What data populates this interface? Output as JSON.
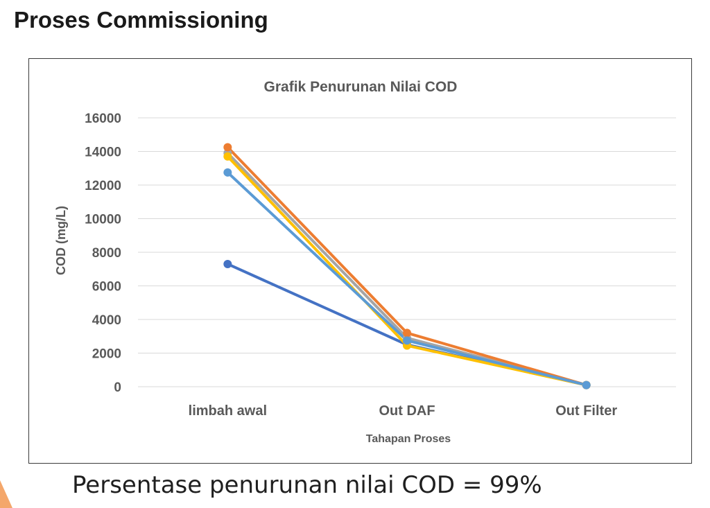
{
  "slide": {
    "title": "Proses Commissioning",
    "caption": "Persentase penurunan nilai COD = 99%"
  },
  "colors": {
    "grid": "#d9d9d9",
    "axis_text": "#595959",
    "accent": "#f4a76b"
  },
  "chart_data": {
    "type": "line",
    "title": "Grafik Penurunan Nilai COD",
    "xlabel": "Tahapan Proses",
    "ylabel": "COD (mg/L)",
    "categories": [
      "limbah awal",
      "Out DAF",
      "Out Filter"
    ],
    "ylim": [
      0,
      16000
    ],
    "yticks": [
      0,
      2000,
      4000,
      6000,
      8000,
      10000,
      12000,
      14000,
      16000
    ],
    "grid": true,
    "legend": "none",
    "series": [
      {
        "color": "#4472c4",
        "values": [
          7300,
          2500,
          100
        ]
      },
      {
        "color": "#a5a5a5",
        "values": [
          13900,
          2900,
          100
        ]
      },
      {
        "color": "#ed7d31",
        "values": [
          14250,
          3200,
          100
        ]
      },
      {
        "color": "#ffc000",
        "values": [
          13700,
          2450,
          100
        ]
      },
      {
        "color": "#5b9bd5",
        "values": [
          12750,
          2750,
          100
        ]
      }
    ]
  }
}
